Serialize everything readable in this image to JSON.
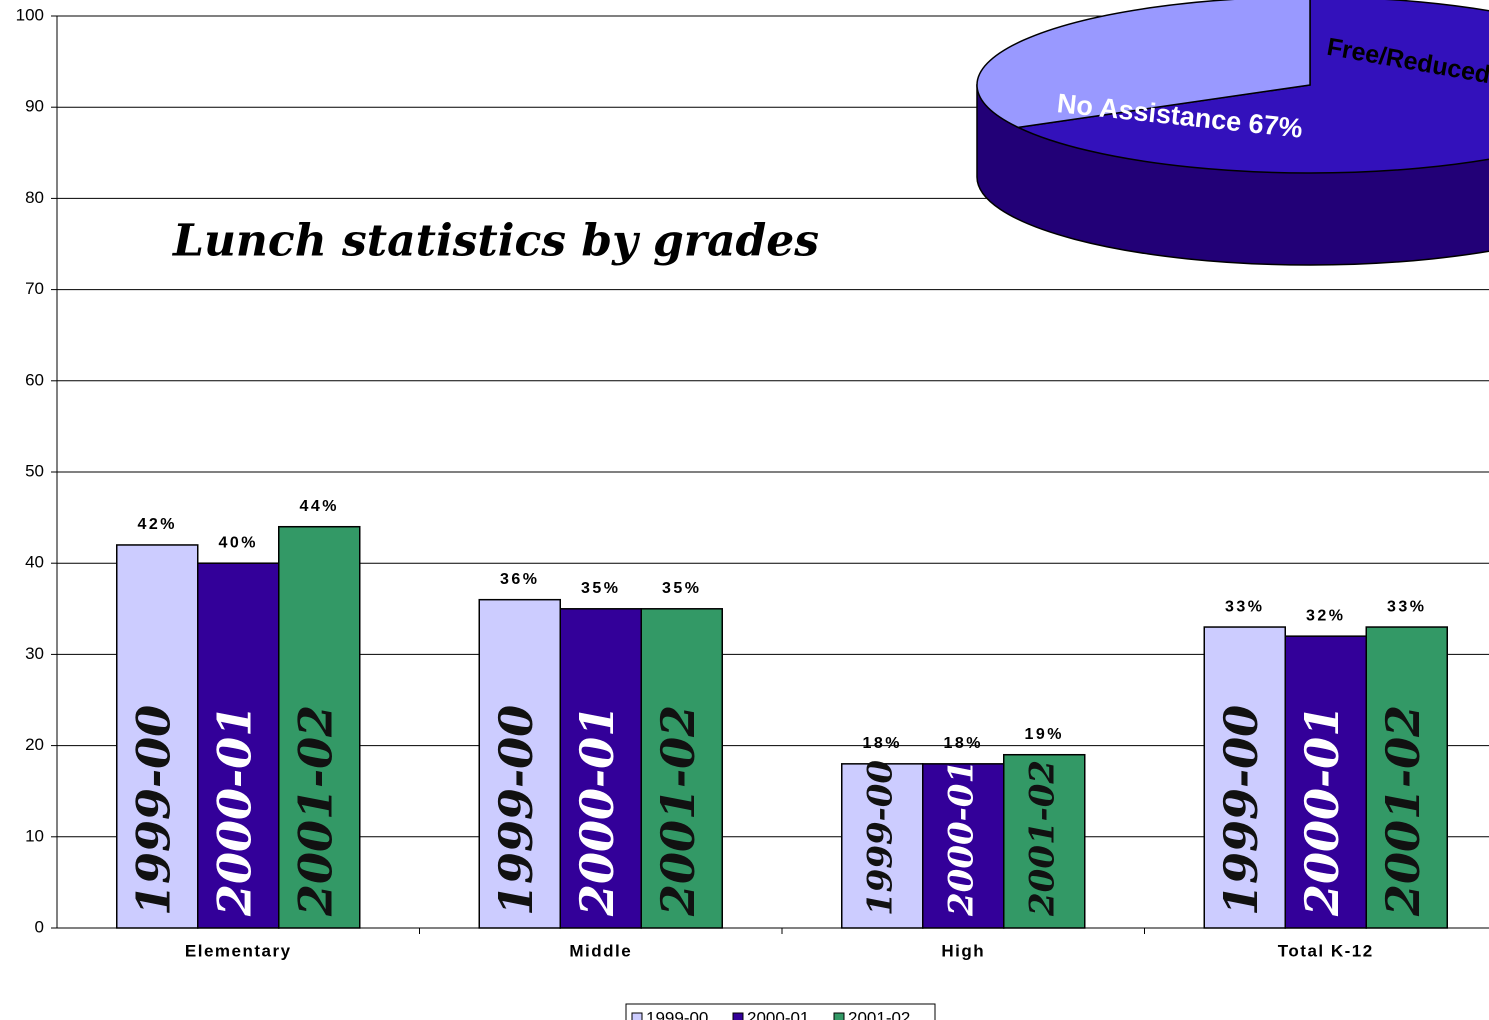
{
  "chart_data": [
    {
      "type": "bar",
      "title": "Lunch statistics by grades",
      "categories": [
        "Elementary",
        "Middle",
        "High",
        "Total  K-12"
      ],
      "series": [
        {
          "name": "1999-00",
          "color": "#ccccff",
          "values": [
            42,
            36,
            18,
            33
          ],
          "value_labels": [
            "42%",
            "36%",
            "18%",
            "33%"
          ]
        },
        {
          "name": "2000-01",
          "color": "#330099",
          "values": [
            40,
            35,
            18,
            32
          ],
          "value_labels": [
            "40%",
            "35%",
            "18%",
            "32%"
          ]
        },
        {
          "name": "2001-02",
          "color": "#339966",
          "values": [
            44,
            35,
            19,
            33
          ],
          "value_labels": [
            "44%",
            "35%",
            "19%",
            "33%"
          ]
        }
      ],
      "ylim": [
        0,
        100
      ],
      "yticks": [
        0,
        10,
        20,
        30,
        40,
        50,
        60,
        70,
        80,
        90,
        100
      ],
      "grid": true,
      "legend": "bottom"
    },
    {
      "type": "pie",
      "categories": [
        "No Assistance",
        "Free/Reduced"
      ],
      "values": [
        67,
        33
      ],
      "value_labels": [
        "67%",
        null
      ],
      "colors": [
        "#3311bb",
        "#9999ff"
      ]
    }
  ]
}
